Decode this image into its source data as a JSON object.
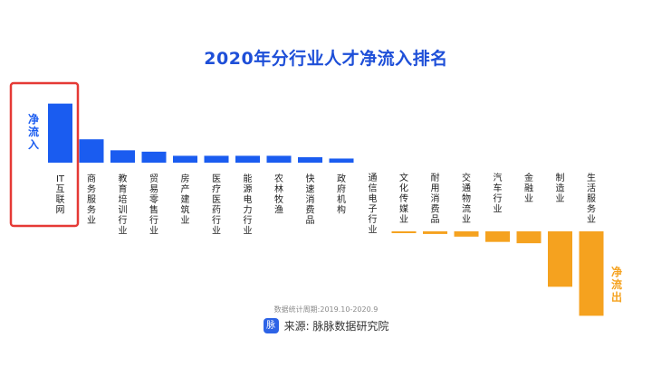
{
  "chart_data": {
    "type": "bar",
    "title": "2020年分行业人才净流入排名",
    "categories": [
      "IT互联网",
      "商务服务业",
      "教育培训行业",
      "贸易零售行业",
      "房产建筑业",
      "医疗医药行业",
      "能源电力行业",
      "农林牧渔",
      "快速消费品",
      "政府机构",
      "通信电子行业",
      "文化传媒业",
      "耐用消费品",
      "交通物流业",
      "汽车行业",
      "金融业",
      "制造业",
      "生活服务业"
    ],
    "values": [
      4.3,
      1.7,
      0.9,
      0.8,
      0.5,
      0.5,
      0.5,
      0.5,
      0.4,
      0.3,
      0.0,
      -0.1,
      -0.2,
      -0.4,
      -0.8,
      -0.9,
      -4.2,
      -6.4
    ],
    "legend_positive": "净流入",
    "legend_negative": "净流出",
    "highlight_category": "IT互联网",
    "grid": false,
    "colors": {
      "positive": "#1a5cf0",
      "negative": "#f5a21f",
      "highlight_box": "#e53935",
      "title": "#1e4fd8"
    }
  },
  "footnote": "数据统计周期:2019.10-2020.9",
  "source": {
    "logo_text": "脉",
    "text": "来源: 脉脉数据研究院"
  }
}
